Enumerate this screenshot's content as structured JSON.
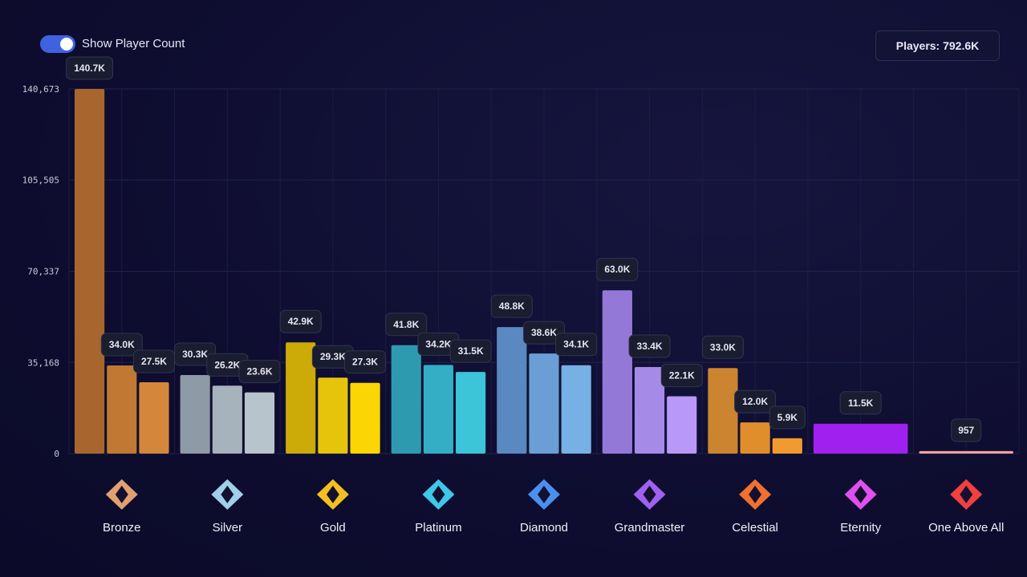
{
  "toggle": {
    "label": "Show Player Count",
    "on": true,
    "color": "#3f63e0"
  },
  "players_badge": "Players: 792.6K",
  "chart_data": {
    "type": "bar",
    "ylim": [
      0,
      140673
    ],
    "yticks": [
      0,
      35168,
      70337,
      105505,
      140673
    ],
    "ytick_labels": [
      "0",
      "35,168",
      "70,337",
      "105,505",
      "140,673"
    ],
    "grid": true,
    "categories": [
      "Bronze",
      "Silver",
      "Gold",
      "Platinum",
      "Diamond",
      "Grandmaster",
      "Celestial",
      "Eternity",
      "One Above All"
    ],
    "groups": [
      {
        "name": "Bronze",
        "values": [
          140673,
          34000,
          27500
        ],
        "labels": [
          "140.7K",
          "34.0K",
          "27.5K"
        ],
        "colors": [
          "#a8662e",
          "#c07832",
          "#d4873a"
        ],
        "icon": "bronze-rank-icon",
        "icon_color": "#e0a070"
      },
      {
        "name": "Silver",
        "values": [
          30300,
          26200,
          23600
        ],
        "labels": [
          "30.3K",
          "26.2K",
          "23.6K"
        ],
        "colors": [
          "#8e9aa6",
          "#a6b2bc",
          "#b8c4cc"
        ],
        "icon": "silver-rank-icon",
        "icon_color": "#9fd0e8"
      },
      {
        "name": "Gold",
        "values": [
          42900,
          29300,
          27300
        ],
        "labels": [
          "42.9K",
          "29.3K",
          "27.3K"
        ],
        "colors": [
          "#ccaa08",
          "#e6c40c",
          "#fbd604"
        ],
        "icon": "gold-rank-icon",
        "icon_color": "#f4c020"
      },
      {
        "name": "Platinum",
        "values": [
          41800,
          34200,
          31500
        ],
        "labels": [
          "41.8K",
          "34.2K",
          "31.5K"
        ],
        "colors": [
          "#2e9ab0",
          "#34aec4",
          "#3cc4d8"
        ],
        "icon": "platinum-rank-icon",
        "icon_color": "#3cc8e8"
      },
      {
        "name": "Diamond",
        "values": [
          48800,
          38600,
          34100
        ],
        "labels": [
          "48.8K",
          "38.6K",
          "34.1K"
        ],
        "colors": [
          "#5a88c0",
          "#6a9ed4",
          "#76b0e4"
        ],
        "icon": "diamond-rank-icon",
        "icon_color": "#4a90f0"
      },
      {
        "name": "Grandmaster",
        "values": [
          63000,
          33400,
          22100
        ],
        "labels": [
          "63.0K",
          "33.4K",
          "22.1K"
        ],
        "colors": [
          "#9478d8",
          "#a68ae8",
          "#b898f8"
        ],
        "icon": "grandmaster-rank-icon",
        "icon_color": "#a060f0"
      },
      {
        "name": "Celestial",
        "values": [
          33000,
          12000,
          5900
        ],
        "labels": [
          "33.0K",
          "12.0K",
          "5.9K"
        ],
        "colors": [
          "#cc8430",
          "#e08e2c",
          "#f09a30"
        ],
        "icon": "celestial-rank-icon",
        "icon_color": "#f07030"
      },
      {
        "name": "Eternity",
        "values": [
          11500
        ],
        "labels": [
          "11.5K"
        ],
        "colors": [
          "#a020f0"
        ],
        "icon": "eternity-rank-icon",
        "icon_color": "#e050f0"
      },
      {
        "name": "One Above All",
        "values": [
          957
        ],
        "labels": [
          "957"
        ],
        "colors": [
          "#f4a0a0"
        ],
        "icon": "one-above-all-rank-icon",
        "icon_color": "#f04040"
      }
    ]
  }
}
